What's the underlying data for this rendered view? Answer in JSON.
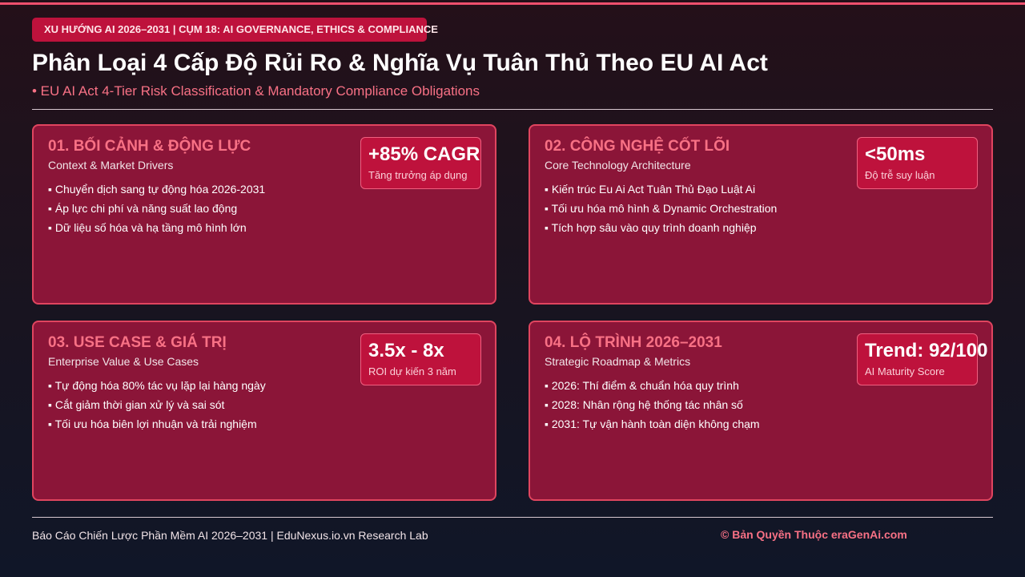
{
  "header": {
    "tag": "XU HƯỚNG AI 2026–2031 | CỤM 18: AI GOVERNANCE, ETHICS & COMPLIANCE",
    "title": "Phân Loại 4 Cấp Độ Rủi Ro & Nghĩa Vụ Tuân Thủ Theo EU AI Act",
    "subtitle": "• EU AI Act 4-Tier Risk Classification & Mandatory Compliance Obligations"
  },
  "cards": [
    {
      "heading": "01. BỐI CẢNH & ĐỘNG LỰC",
      "subheading": "Context & Market Drivers",
      "metric": {
        "value": "+85% CAGR",
        "label": "Tăng trưởng áp dụng"
      },
      "bullets": [
        "▪ Chuyển dịch sang tự động hóa 2026-2031",
        "▪ Áp lực chi phí và năng suất lao động",
        "▪ Dữ liệu số hóa và hạ tầng mô hình lớn"
      ]
    },
    {
      "heading": "02. CÔNG NGHỆ CỐT LÕI",
      "subheading": "Core Technology Architecture",
      "metric": {
        "value": "<50ms",
        "label": "Độ trễ suy luận"
      },
      "bullets": [
        "▪ Kiến trúc Eu Ai Act Tuân Thủ Đạo Luật Ai",
        "▪ Tối ưu hóa mô hình & Dynamic Orchestration",
        "▪ Tích hợp sâu vào quy trình doanh nghiệp"
      ]
    },
    {
      "heading": "03. USE CASE & GIÁ TRỊ",
      "subheading": "Enterprise Value & Use Cases",
      "metric": {
        "value": "3.5x - 8x",
        "label": "ROI dự kiến 3 năm"
      },
      "bullets": [
        "▪ Tự động hóa 80% tác vụ lặp lại hàng ngày",
        "▪ Cắt giảm thời gian xử lý và sai sót",
        "▪ Tối ưu hóa biên lợi nhuận và trải nghiệm"
      ]
    },
    {
      "heading": "04. LỘ TRÌNH 2026–2031",
      "subheading": "Strategic Roadmap & Metrics",
      "metric": {
        "value": "Trend: 92/100",
        "label": "AI Maturity Score"
      },
      "bullets": [
        "▪ 2026: Thí điểm & chuẩn hóa quy trình",
        "▪ 2028: Nhân rộng hệ thống tác nhân số",
        "▪ 2031: Tự vận hành toàn diện không chạm"
      ]
    }
  ],
  "footer": {
    "left": "Báo Cáo Chiến Lược Phần Mềm AI 2026–2031 | EduNexus.io.vn Research Lab",
    "right": "© Bản Quyền Thuộc eraGenAi.com"
  }
}
